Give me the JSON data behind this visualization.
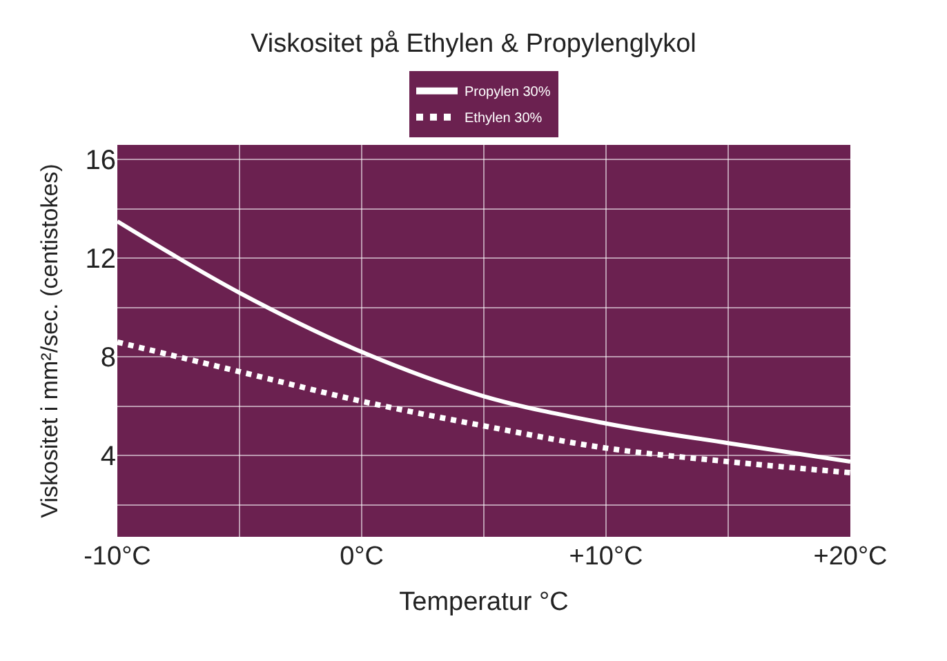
{
  "chart_data": {
    "type": "line",
    "title": "Viskositet på Ethylen & Propylenglykol",
    "xlabel": "Temperatur °C",
    "ylabel": "Viskositet i mm²/sec. (centistokes)",
    "x": [
      -10,
      -5,
      0,
      5,
      10,
      15,
      20
    ],
    "series": [
      {
        "name": "Propylen 30%",
        "color": "#ffffff",
        "line_style": "solid",
        "values": [
          13.5,
          10.6,
          8.2,
          6.4,
          5.3,
          4.5,
          3.75
        ]
      },
      {
        "name": "Ethylen 30%",
        "color": "#ffffff",
        "line_style": "dotted",
        "values": [
          8.6,
          7.4,
          6.2,
          5.2,
          4.3,
          3.75,
          3.3
        ]
      }
    ],
    "xlim": [
      -10,
      20
    ],
    "ylim": [
      0.7,
      16.6
    ],
    "xticks": [
      {
        "value": -10,
        "label": "-10°C"
      },
      {
        "value": -5,
        "label": null
      },
      {
        "value": 0,
        "label": "0°C"
      },
      {
        "value": 5,
        "label": null
      },
      {
        "value": 10,
        "label": "+10°C"
      },
      {
        "value": 15,
        "label": null
      },
      {
        "value": 20,
        "label": "+20°C"
      }
    ],
    "yticks": [
      {
        "value": 2,
        "label": null
      },
      4,
      {
        "value": 6,
        "label": null
      },
      8,
      {
        "value": 10,
        "label": null
      },
      12,
      {
        "value": 14,
        "label": null
      },
      16
    ],
    "grid": true,
    "legend": "top",
    "marker": "none"
  }
}
